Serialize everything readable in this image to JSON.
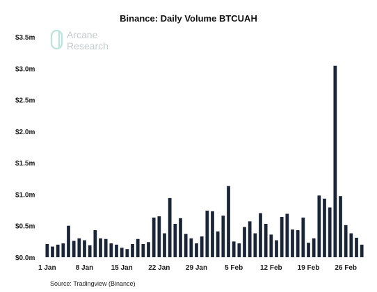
{
  "chart_data": {
    "type": "bar",
    "title": "Binance: Daily Volume BTCUAH",
    "xlabel": "",
    "ylabel": "",
    "ylim": [
      0,
      3.5
    ],
    "y_unit": "millions",
    "y_ticks": [
      "$0.0m",
      "$0.5m",
      "$1.0m",
      "$1.5m",
      "$2.0m",
      "$2.5m",
      "$3.0m",
      "$3.5m"
    ],
    "x_ticks": [
      "1 Jan",
      "8 Jan",
      "15 Jan",
      "22 Jan",
      "29 Jan",
      "5 Feb",
      "12 Feb",
      "19 Feb",
      "26 Feb"
    ],
    "bar_color": "#1b2538",
    "categories": [
      "1 Jan",
      "2 Jan",
      "3 Jan",
      "4 Jan",
      "5 Jan",
      "6 Jan",
      "7 Jan",
      "8 Jan",
      "9 Jan",
      "10 Jan",
      "11 Jan",
      "12 Jan",
      "13 Jan",
      "14 Jan",
      "15 Jan",
      "16 Jan",
      "17 Jan",
      "18 Jan",
      "19 Jan",
      "20 Jan",
      "21 Jan",
      "22 Jan",
      "23 Jan",
      "24 Jan",
      "25 Jan",
      "26 Jan",
      "27 Jan",
      "28 Jan",
      "29 Jan",
      "30 Jan",
      "31 Jan",
      "1 Feb",
      "2 Feb",
      "3 Feb",
      "4 Feb",
      "5 Feb",
      "6 Feb",
      "7 Feb",
      "8 Feb",
      "9 Feb",
      "10 Feb",
      "11 Feb",
      "12 Feb",
      "13 Feb",
      "14 Feb",
      "15 Feb",
      "16 Feb",
      "17 Feb",
      "18 Feb",
      "19 Feb",
      "20 Feb",
      "21 Feb",
      "22 Feb",
      "23 Feb",
      "24 Feb",
      "25 Feb",
      "26 Feb",
      "27 Feb",
      "28 Feb",
      "1 Mar"
    ],
    "values": [
      0.21,
      0.17,
      0.2,
      0.22,
      0.5,
      0.26,
      0.3,
      0.27,
      0.19,
      0.43,
      0.3,
      0.29,
      0.22,
      0.2,
      0.15,
      0.13,
      0.21,
      0.29,
      0.21,
      0.24,
      0.63,
      0.65,
      0.38,
      0.94,
      0.53,
      0.62,
      0.37,
      0.3,
      0.22,
      0.33,
      0.74,
      0.73,
      0.41,
      0.66,
      1.13,
      0.25,
      0.22,
      0.48,
      0.57,
      0.38,
      0.7,
      0.53,
      0.36,
      0.27,
      0.64,
      0.69,
      0.44,
      0.43,
      0.63,
      0.23,
      0.3,
      0.98,
      0.93,
      0.79,
      3.04,
      0.97,
      0.51,
      0.38,
      0.31,
      0.2
    ]
  },
  "watermark": {
    "line1": "Arcane",
    "line2": "Research"
  },
  "source": "Source: Tradingview (Binance)"
}
